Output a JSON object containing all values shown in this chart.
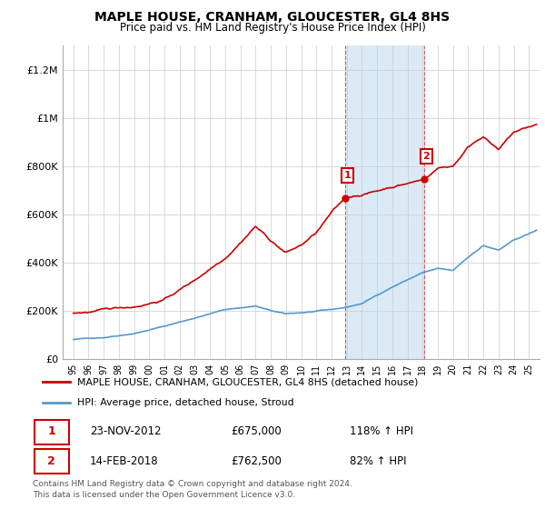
{
  "title": "MAPLE HOUSE, CRANHAM, GLOUCESTER, GL4 8HS",
  "subtitle": "Price paid vs. HM Land Registry's House Price Index (HPI)",
  "ylabel_ticks": [
    "£0",
    "£200K",
    "£400K",
    "£600K",
    "£800K",
    "£1M",
    "£1.2M"
  ],
  "ylim": [
    0,
    1300000
  ],
  "yticks": [
    0,
    200000,
    400000,
    600000,
    800000,
    1000000,
    1200000
  ],
  "sale1_date": "23-NOV-2012",
  "sale1_price": 675000,
  "sale1_hpi": "118% ↑ HPI",
  "sale2_date": "14-FEB-2018",
  "sale2_price": 762500,
  "sale2_hpi": "82% ↑ HPI",
  "legend1": "MAPLE HOUSE, CRANHAM, GLOUCESTER, GL4 8HS (detached house)",
  "legend2": "HPI: Average price, detached house, Stroud",
  "footer": "Contains HM Land Registry data © Crown copyright and database right 2024.\nThis data is licensed under the Open Government Licence v3.0.",
  "red_color": "#cc0000",
  "blue_color": "#5599cc",
  "highlight_color": "#daeaf7",
  "sale1_x": 2012.9,
  "sale2_x": 2018.1,
  "sale1_y": 675000,
  "sale2_y": 762500,
  "xlim_left": 1994.3,
  "xlim_right": 2025.7,
  "background": "#ffffff"
}
